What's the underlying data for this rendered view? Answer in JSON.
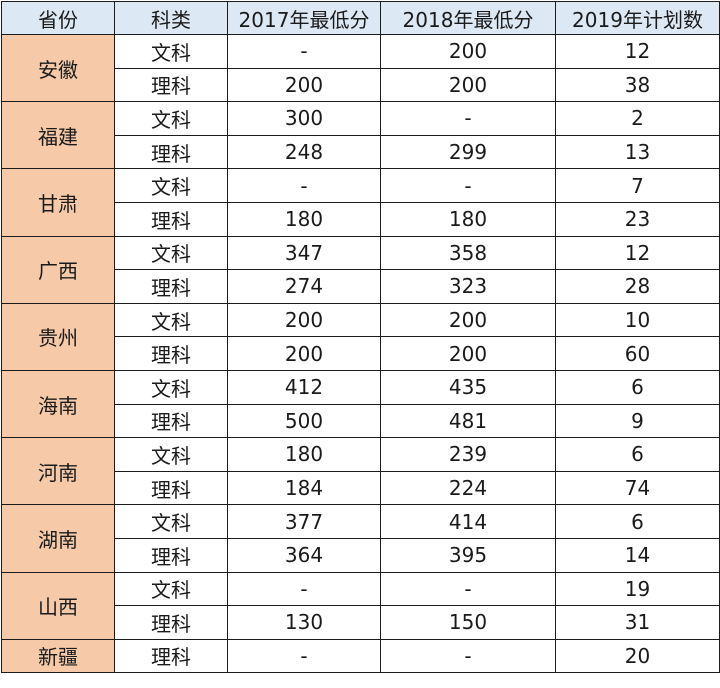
{
  "headers": [
    "省份",
    "科类",
    "2017年最低分",
    "2018年最低分",
    "2019年计划数"
  ],
  "provinces": [
    {
      "name": "安徽",
      "rows": [
        {
          "type": "文科",
          "s2017": "-",
          "s2018": "200",
          "plan2019": "12"
        },
        {
          "type": "理科",
          "s2017": "200",
          "s2018": "200",
          "plan2019": "38"
        }
      ]
    },
    {
      "name": "福建",
      "rows": [
        {
          "type": "文科",
          "s2017": "300",
          "s2018": "-",
          "plan2019": "2"
        },
        {
          "type": "理科",
          "s2017": "248",
          "s2018": "299",
          "plan2019": "13"
        }
      ]
    },
    {
      "name": "甘肃",
      "rows": [
        {
          "type": "文科",
          "s2017": "-",
          "s2018": "-",
          "plan2019": "7"
        },
        {
          "type": "理科",
          "s2017": "180",
          "s2018": "180",
          "plan2019": "23"
        }
      ]
    },
    {
      "name": "广西",
      "rows": [
        {
          "type": "文科",
          "s2017": "347",
          "s2018": "358",
          "plan2019": "12"
        },
        {
          "type": "理科",
          "s2017": "274",
          "s2018": "323",
          "plan2019": "28"
        }
      ]
    },
    {
      "name": "贵州",
      "rows": [
        {
          "type": "文科",
          "s2017": "200",
          "s2018": "200",
          "plan2019": "10"
        },
        {
          "type": "理科",
          "s2017": "200",
          "s2018": "200",
          "plan2019": "60"
        }
      ]
    },
    {
      "name": "海南",
      "rows": [
        {
          "type": "文科",
          "s2017": "412",
          "s2018": "435",
          "plan2019": "6"
        },
        {
          "type": "理科",
          "s2017": "500",
          "s2018": "481",
          "plan2019": "9"
        }
      ]
    },
    {
      "name": "河南",
      "rows": [
        {
          "type": "文科",
          "s2017": "180",
          "s2018": "239",
          "plan2019": "6"
        },
        {
          "type": "理科",
          "s2017": "184",
          "s2018": "224",
          "plan2019": "74"
        }
      ]
    },
    {
      "name": "湖南",
      "rows": [
        {
          "type": "文科",
          "s2017": "377",
          "s2018": "414",
          "plan2019": "6"
        },
        {
          "type": "理科",
          "s2017": "364",
          "s2018": "395",
          "plan2019": "14"
        }
      ]
    },
    {
      "name": "山西",
      "rows": [
        {
          "type": "文科",
          "s2017": "-",
          "s2018": "-",
          "plan2019": "19"
        },
        {
          "type": "理科",
          "s2017": "130",
          "s2018": "150",
          "plan2019": "31"
        }
      ]
    },
    {
      "name": "新疆",
      "rows": [
        {
          "type": "理科",
          "s2017": "-",
          "s2018": "-",
          "plan2019": "20"
        }
      ]
    }
  ]
}
